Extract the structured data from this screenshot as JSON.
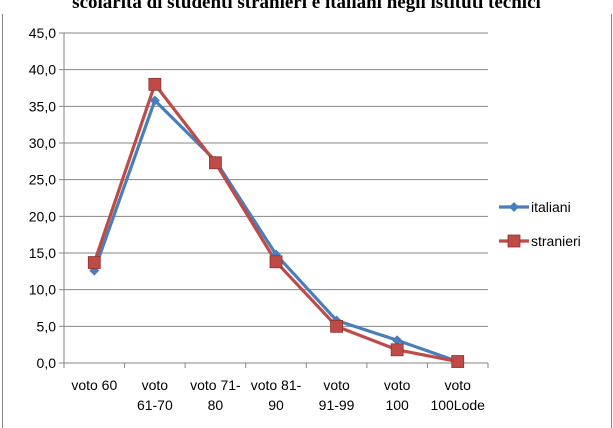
{
  "title": "scolarità di studenti stranieri e italiani negli istituti tecnici",
  "chart_data": {
    "type": "line",
    "title": "scolarità di studenti stranieri e italiani negli istituti tecnici",
    "xlabel": "",
    "ylabel": "",
    "categories": [
      [
        "voto 60"
      ],
      [
        "voto",
        "61-70"
      ],
      [
        "voto 71-",
        "80"
      ],
      [
        "voto 81-",
        "90"
      ],
      [
        "voto",
        "91-99"
      ],
      [
        "voto",
        "100"
      ],
      [
        "voto",
        "100Lode"
      ]
    ],
    "ylim": [
      0,
      45
    ],
    "yticks": [
      "0,0",
      "5,0",
      "10,0",
      "15,0",
      "20,0",
      "25,0",
      "30,0",
      "35,0",
      "40,0",
      "45,0"
    ],
    "grid": true,
    "legend_position": "right",
    "series": [
      {
        "name": "italiani",
        "color": "#4a7ebb",
        "marker": "diamond",
        "values": [
          12.6,
          35.8,
          27.6,
          14.8,
          5.8,
          3.1,
          0.2
        ]
      },
      {
        "name": "stranieri",
        "color": "#be4b48",
        "marker": "square",
        "values": [
          13.7,
          38.0,
          27.3,
          13.8,
          5.0,
          1.8,
          0.2
        ]
      }
    ]
  }
}
